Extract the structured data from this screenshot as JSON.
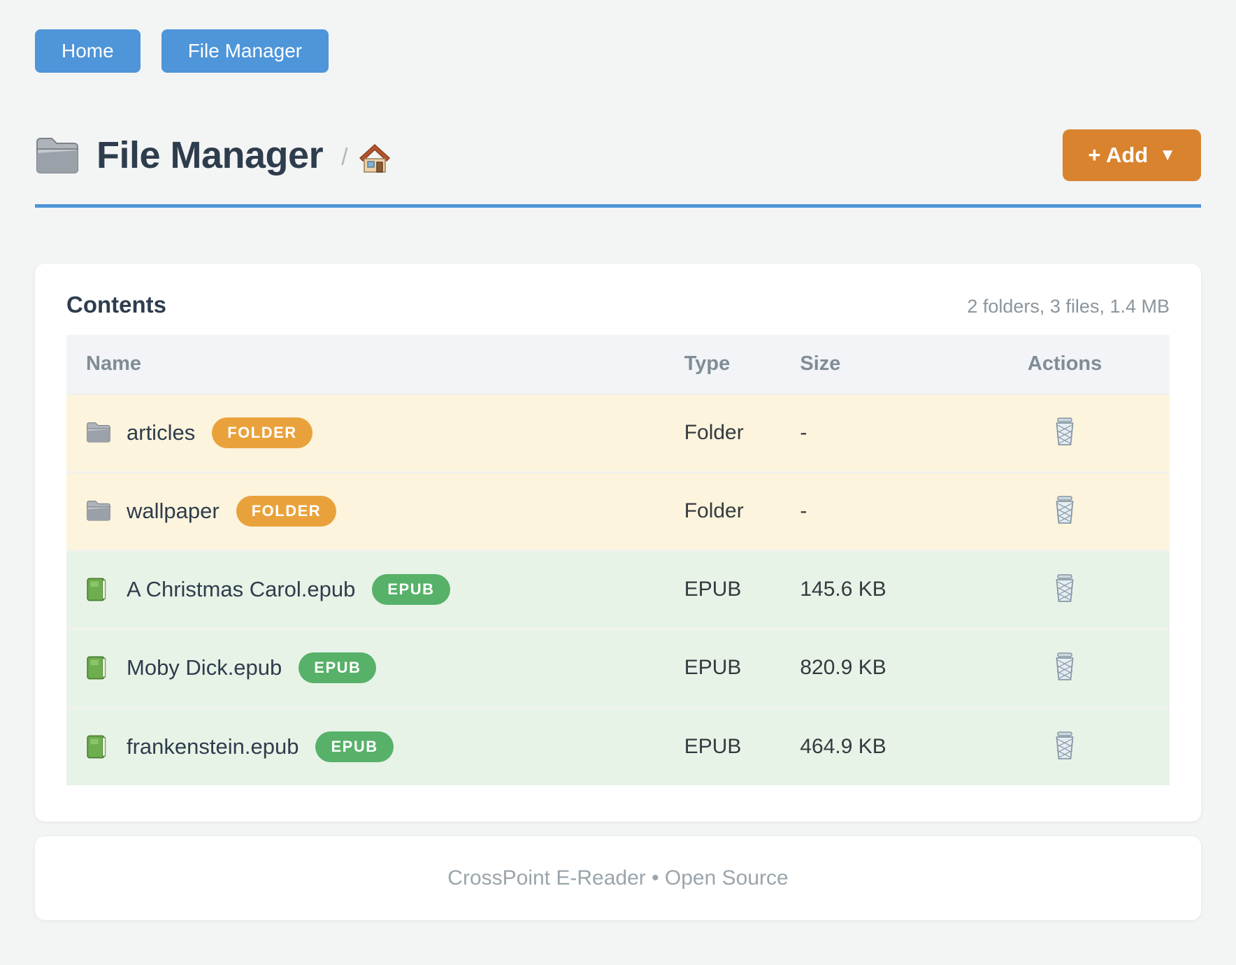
{
  "nav": {
    "buttons": [
      {
        "label": "Home"
      },
      {
        "label": "File Manager"
      }
    ]
  },
  "header": {
    "title": "File Manager",
    "breadcrumb_separator": "/",
    "add_button": {
      "label": "+ Add",
      "caret": "▼"
    }
  },
  "colors": {
    "accent_blue": "#4e95d9",
    "accent_orange": "#d9832e",
    "badge_folder": "#e9a23b",
    "badge_epub": "#57b169",
    "row_folder_bg": "#fcf4dd",
    "row_epub_bg": "#e8f3e7"
  },
  "contents": {
    "heading": "Contents",
    "summary": "2 folders, 3 files, 1.4 MB",
    "table": {
      "headers": [
        "Name",
        "Type",
        "Size",
        "Actions"
      ],
      "rows": [
        {
          "name": "articles",
          "kind": "folder",
          "icon": "folder-icon",
          "badge": "FOLDER",
          "type": "Folder",
          "size": "-"
        },
        {
          "name": "wallpaper",
          "kind": "folder",
          "icon": "folder-icon",
          "badge": "FOLDER",
          "type": "Folder",
          "size": "-"
        },
        {
          "name": "A Christmas Carol.epub",
          "kind": "epub",
          "icon": "book-icon",
          "badge": "EPUB",
          "type": "EPUB",
          "size": "145.6 KB"
        },
        {
          "name": "Moby Dick.epub",
          "kind": "epub",
          "icon": "book-icon",
          "badge": "EPUB",
          "type": "EPUB",
          "size": "820.9 KB"
        },
        {
          "name": "frankenstein.epub",
          "kind": "epub",
          "icon": "book-icon",
          "badge": "EPUB",
          "type": "EPUB",
          "size": "464.9 KB"
        }
      ]
    }
  },
  "footer": {
    "text": "CrossPoint E-Reader • Open Source"
  }
}
